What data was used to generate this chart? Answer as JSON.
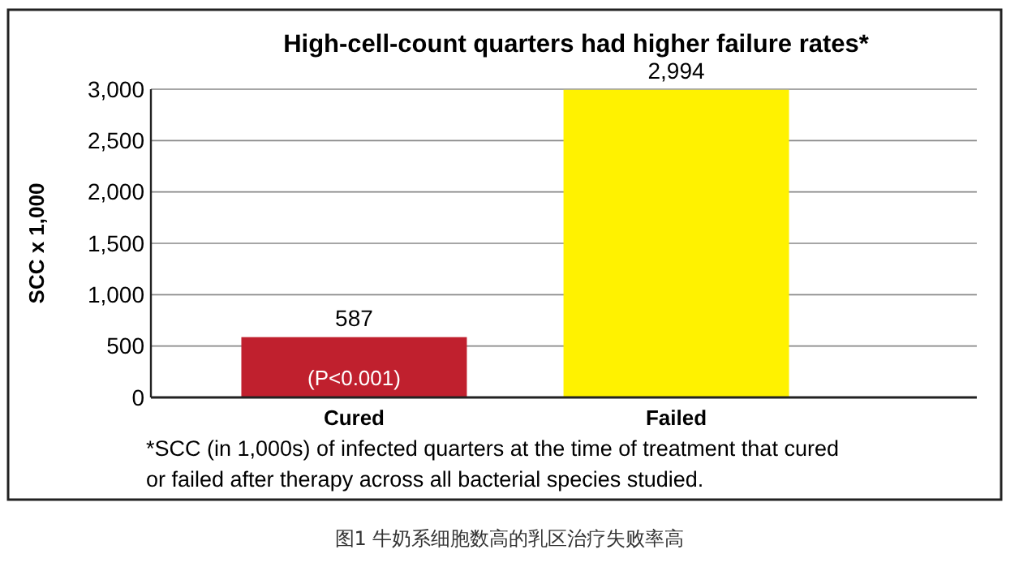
{
  "chart_data": {
    "type": "bar",
    "title": "High-cell-count quarters had higher failure rates*",
    "ylabel": "SCC x 1,000",
    "categories": [
      "Cured",
      "Failed"
    ],
    "values": [
      587,
      2994
    ],
    "colors": [
      "#c0202e",
      "#fff200"
    ],
    "ylim": [
      0,
      3000
    ],
    "yticks": [
      0,
      {
        "value": 500,
        "label": "500"
      },
      {
        "value": 1000,
        "label": "1,000"
      },
      {
        "value": 1500,
        "label": "1,500"
      },
      {
        "value": 2000,
        "label": "2,000"
      },
      {
        "value": 2500,
        "label": "2,500"
      },
      {
        "value": 3000,
        "label": "3,000"
      }
    ],
    "grid": "y",
    "data_labels": true,
    "value_labels": [
      "587",
      "2,994"
    ],
    "annotations": [
      "(P<0.001)",
      "*SCC (in 1,000s) of infected quarters at the time of treatment that cured or failed after therapy across all bacterial species studied.",
      "图1 牛奶系细胞数高的乳区治疗失败率高"
    ]
  }
}
